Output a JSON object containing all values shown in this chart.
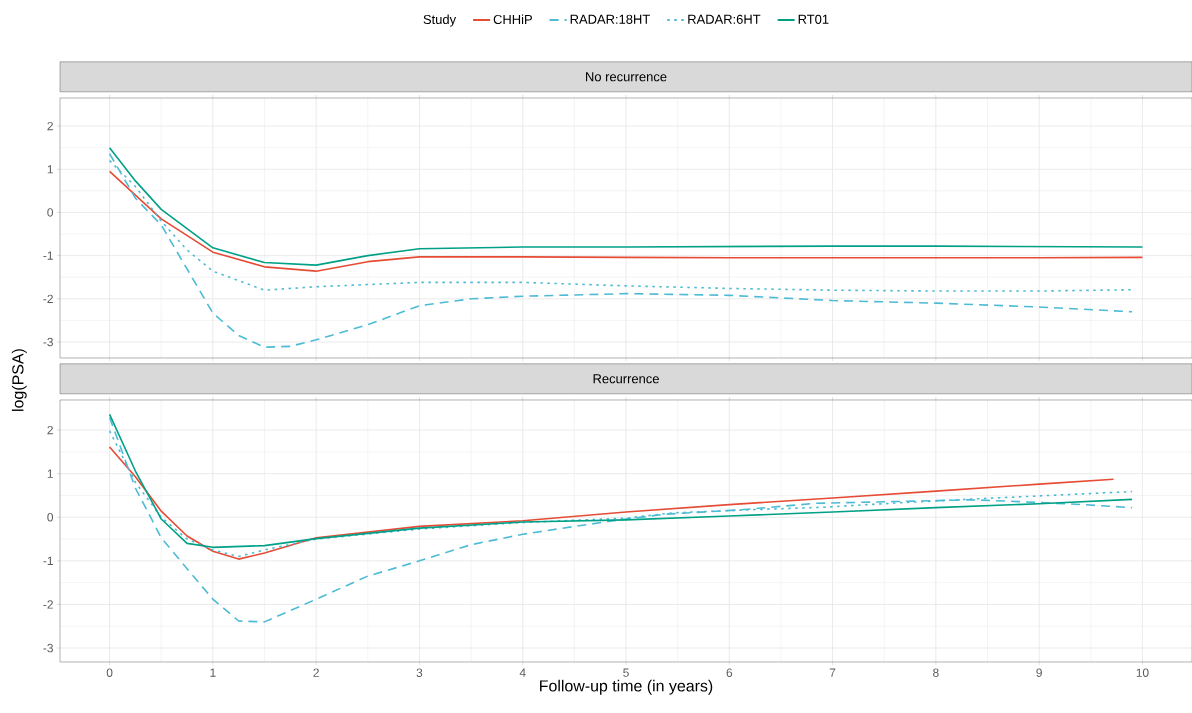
{
  "chart_data": [
    {
      "type": "line",
      "title": "No recurrence",
      "ylabel": "log(PSA)",
      "legend_title": "Study",
      "legend": "top",
      "grid": true,
      "tick_labels": "y",
      "marker": "none",
      "xlim": [
        -0.48,
        10.48
      ],
      "xticks": [
        0,
        1,
        2,
        3,
        4,
        5,
        6,
        7,
        8,
        9,
        10
      ],
      "ylim": [
        -3.37,
        2.65
      ],
      "yticks": [
        -3,
        -2,
        -1,
        0,
        1,
        2
      ],
      "series": [
        {
          "name": "CHHiP",
          "color": "#e64b35",
          "line_style": "solid",
          "x": [
            0,
            0.25,
            0.5,
            1,
            1.5,
            2,
            2.5,
            3,
            4,
            5,
            6,
            7,
            8,
            9,
            10
          ],
          "values": [
            0.95,
            0.4,
            -0.15,
            -0.92,
            -1.26,
            -1.36,
            -1.14,
            -1.03,
            -1.03,
            -1.04,
            -1.05,
            -1.05,
            -1.05,
            -1.05,
            -1.04
          ]
        },
        {
          "name": "RADAR:18HT",
          "color": "#4dbbd5",
          "line_style": "dashed",
          "x": [
            0,
            0.25,
            0.5,
            1,
            1.25,
            1.5,
            1.75,
            2,
            2.5,
            3,
            3.5,
            4,
            5,
            6,
            7,
            8,
            9,
            9.9
          ],
          "values": [
            1.36,
            0.33,
            -0.29,
            -2.33,
            -2.85,
            -3.12,
            -3.1,
            -2.95,
            -2.6,
            -2.16,
            -2.0,
            -1.94,
            -1.88,
            -1.92,
            -2.04,
            -2.1,
            -2.19,
            -2.3
          ]
        },
        {
          "name": "RADAR:6HT",
          "color": "#4dbbd5",
          "line_style": "dotted",
          "x": [
            0,
            0.25,
            0.5,
            0.75,
            1,
            1.5,
            2,
            3,
            4,
            5,
            6,
            7,
            8,
            9,
            9.9
          ],
          "values": [
            1.2,
            0.6,
            -0.2,
            -0.87,
            -1.36,
            -1.8,
            -1.72,
            -1.62,
            -1.62,
            -1.7,
            -1.76,
            -1.8,
            -1.82,
            -1.82,
            -1.79
          ]
        },
        {
          "name": "RT01",
          "color": "#00a087",
          "line_style": "solid",
          "x": [
            0,
            0.25,
            0.5,
            1,
            1.5,
            2,
            2.5,
            3,
            4,
            5,
            6,
            7,
            8,
            9,
            10
          ],
          "values": [
            1.5,
            0.73,
            0.07,
            -0.82,
            -1.16,
            -1.22,
            -1.0,
            -0.84,
            -0.8,
            -0.8,
            -0.79,
            -0.78,
            -0.78,
            -0.79,
            -0.8
          ]
        }
      ]
    },
    {
      "type": "line",
      "title": "Recurrence",
      "xlabel": "Follow-up time (in years)",
      "grid": true,
      "marker": "none",
      "xlim": [
        -0.48,
        10.48
      ],
      "xticks": [
        0,
        1,
        2,
        3,
        4,
        5,
        6,
        7,
        8,
        9,
        10
      ],
      "ylim": [
        -3.32,
        2.69
      ],
      "yticks": [
        -3,
        -2,
        -1,
        0,
        1,
        2
      ],
      "series": [
        {
          "color": "#e64b35",
          "line_style": "solid",
          "x": [
            0,
            0.25,
            0.5,
            0.75,
            1,
            1.25,
            1.5,
            2,
            3,
            4,
            5,
            6,
            7,
            8,
            9,
            9.72
          ],
          "values": [
            1.61,
            0.93,
            0.14,
            -0.43,
            -0.78,
            -0.96,
            -0.82,
            -0.47,
            -0.21,
            -0.08,
            0.12,
            0.29,
            0.44,
            0.6,
            0.76,
            0.87
          ]
        },
        {
          "color": "#4dbbd5",
          "line_style": "dashed",
          "x": [
            0,
            0.25,
            0.5,
            0.75,
            1,
            1.25,
            1.5,
            1.75,
            2,
            2.5,
            3,
            3.5,
            4,
            4.5,
            5,
            5.38,
            6.11,
            6.84,
            7.61,
            8.34,
            8.7,
            9.43,
            9.9
          ],
          "values": [
            2.29,
            0.67,
            -0.47,
            -1.18,
            -1.88,
            -2.38,
            -2.4,
            -2.14,
            -1.88,
            -1.35,
            -1.0,
            -0.63,
            -0.39,
            -0.21,
            -0.04,
            0.07,
            0.17,
            0.32,
            0.36,
            0.4,
            0.37,
            0.29,
            0.22
          ]
        },
        {
          "color": "#4dbbd5",
          "line_style": "dotted",
          "x": [
            0,
            0.25,
            0.5,
            0.75,
            1,
            1.25,
            1.5,
            2,
            3,
            4,
            5,
            5.45,
            6.18,
            6.91,
            7.64,
            8.37,
            9.1,
            9.9
          ],
          "values": [
            1.98,
            0.8,
            0.0,
            -0.5,
            -0.75,
            -0.9,
            -0.75,
            -0.5,
            -0.27,
            -0.12,
            -0.02,
            0.1,
            0.17,
            0.23,
            0.33,
            0.42,
            0.5,
            0.59
          ]
        },
        {
          "color": "#00a087",
          "line_style": "solid",
          "x": [
            0,
            0.25,
            0.5,
            0.75,
            1,
            1.5,
            2,
            3,
            4,
            5,
            6,
            7,
            8,
            9,
            9.9
          ],
          "values": [
            2.36,
            1.06,
            -0.04,
            -0.6,
            -0.69,
            -0.65,
            -0.49,
            -0.25,
            -0.11,
            -0.06,
            0.03,
            0.12,
            0.22,
            0.31,
            0.41
          ]
        }
      ]
    }
  ]
}
